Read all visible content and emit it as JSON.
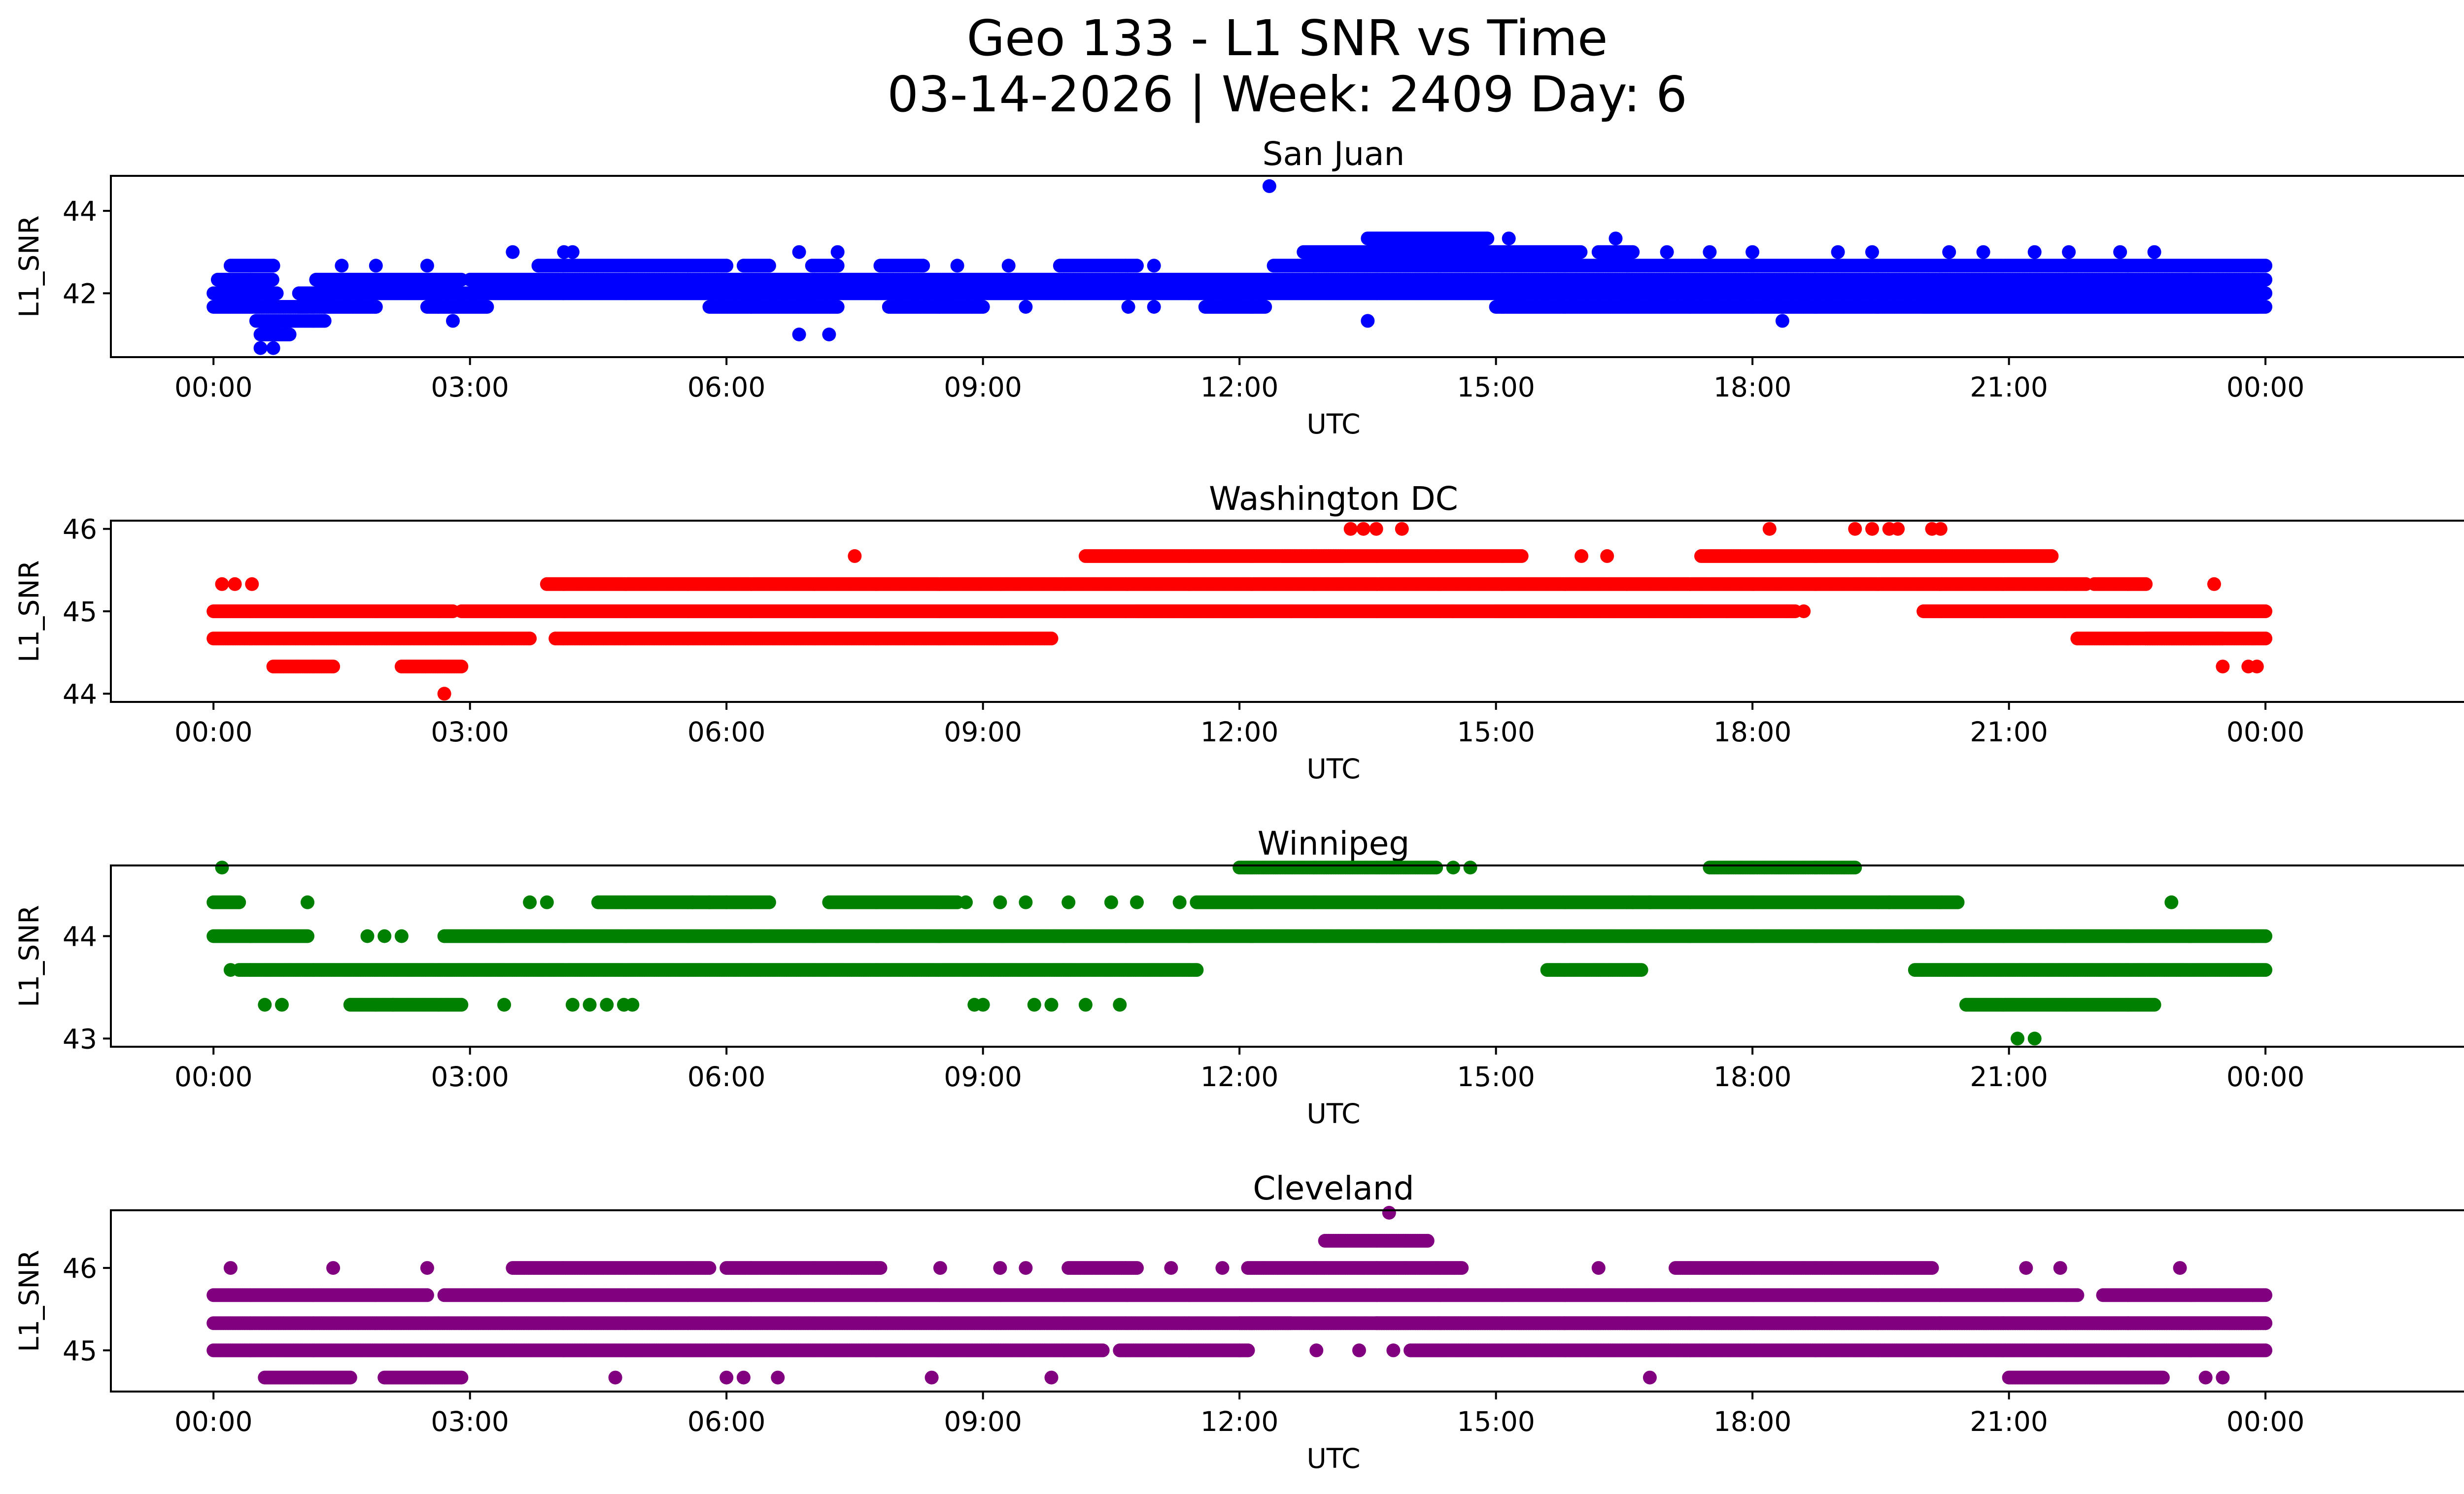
{
  "chart_data": {
    "type": "scatter",
    "suptitle_line1": "Geo 133 - L1 SNR vs Time",
    "suptitle_line2": "03-14-2026 | Week: 2409 Day: 6",
    "x_tick_labels": [
      "00:00",
      "03:00",
      "06:00",
      "09:00",
      "12:00",
      "15:00",
      "18:00",
      "21:00",
      "00:00"
    ],
    "x_tick_hours": [
      0,
      3,
      6,
      9,
      12,
      15,
      18,
      21,
      24
    ],
    "xlim_hours": [
      -1.2,
      27.4
    ],
    "sample_step_hours": 0.02,
    "panels": [
      {
        "title": "San Juan",
        "xlabel": "UTC",
        "ylabel": "L1_SNR",
        "color": "#0000ff",
        "ylim": [
          40.45,
          44.85
        ],
        "y_ticks": [
          42,
          44
        ],
        "y_tick_labels": [
          "42",
          "44"
        ],
        "runs": [
          [
            41.67,
            0.0,
            1.1
          ],
          [
            42.0,
            0.0,
            0.75
          ],
          [
            42.33,
            0.05,
            0.7
          ],
          [
            42.67,
            0.2,
            0.7
          ],
          [
            41.33,
            0.5,
            1.3
          ],
          [
            41.0,
            0.55,
            0.9
          ],
          [
            42.0,
            1.0,
            24.0
          ],
          [
            41.67,
            1.0,
            1.9
          ],
          [
            42.33,
            1.2,
            2.9
          ],
          [
            42.33,
            3.0,
            24.0
          ],
          [
            41.67,
            2.5,
            3.2
          ],
          [
            41.67,
            5.8,
            7.3
          ],
          [
            42.67,
            3.8,
            6.0
          ],
          [
            42.67,
            6.2,
            6.5
          ],
          [
            42.67,
            7.0,
            7.3
          ],
          [
            41.67,
            7.9,
            9.0
          ],
          [
            42.67,
            7.8,
            8.3
          ],
          [
            42.67,
            9.9,
            10.8
          ],
          [
            41.67,
            11.6,
            12.3
          ],
          [
            42.67,
            12.4,
            24.0
          ],
          [
            43.0,
            12.75,
            16.0
          ],
          [
            43.33,
            13.5,
            14.9
          ],
          [
            41.67,
            15.0,
            23.9
          ],
          [
            43.0,
            16.2,
            16.6
          ],
          [
            41.67,
            20.0,
            24.0
          ]
        ],
        "points": [
          [
            40.67,
            0.55
          ],
          [
            40.67,
            0.7
          ],
          [
            41.0,
            6.85
          ],
          [
            41.0,
            7.2
          ],
          [
            41.33,
            2.8
          ],
          [
            41.33,
            13.5
          ],
          [
            41.33,
            18.35
          ],
          [
            43.0,
            3.5
          ],
          [
            43.0,
            4.1
          ],
          [
            43.0,
            4.2
          ],
          [
            43.0,
            6.85
          ],
          [
            43.0,
            7.3
          ],
          [
            43.33,
            15.15
          ],
          [
            43.33,
            16.4
          ],
          [
            43.0,
            17.0
          ],
          [
            43.0,
            17.5
          ],
          [
            43.0,
            18.0
          ],
          [
            43.0,
            19.0
          ],
          [
            43.0,
            19.4
          ],
          [
            43.0,
            20.3
          ],
          [
            43.0,
            20.7
          ],
          [
            43.0,
            21.3
          ],
          [
            43.0,
            21.7
          ],
          [
            43.0,
            22.3
          ],
          [
            43.0,
            22.7
          ],
          [
            44.6,
            12.35
          ],
          [
            41.67,
            1.3
          ],
          [
            41.67,
            9.5
          ],
          [
            41.67,
            10.7
          ],
          [
            41.67,
            11.0
          ],
          [
            42.67,
            2.5
          ],
          [
            42.67,
            1.9
          ],
          [
            42.67,
            1.5
          ],
          [
            42.67,
            11.0
          ],
          [
            42.67,
            9.3
          ],
          [
            42.67,
            8.7
          ]
        ]
      },
      {
        "title": "Washington DC",
        "xlabel": "UTC",
        "ylabel": "L1_SNR",
        "color": "#ff0000",
        "ylim": [
          43.9,
          46.1
        ],
        "y_ticks": [
          44,
          45,
          46
        ],
        "y_tick_labels": [
          "44",
          "45",
          "46"
        ],
        "runs": [
          [
            45.0,
            0.0,
            2.8
          ],
          [
            44.67,
            0.0,
            3.7
          ],
          [
            44.33,
            0.7,
            1.4
          ],
          [
            44.33,
            2.2,
            2.9
          ],
          [
            45.0,
            2.9,
            12.0
          ],
          [
            44.67,
            4.0,
            9.8
          ],
          [
            45.33,
            3.9,
            21.9
          ],
          [
            45.67,
            10.2,
            15.3
          ],
          [
            45.67,
            12.5,
            13.2
          ],
          [
            45.67,
            17.4,
            21.5
          ],
          [
            45.0,
            10.8,
            17.4
          ],
          [
            45.0,
            15.0,
            18.5
          ],
          [
            45.0,
            20.0,
            24.0
          ],
          [
            44.67,
            21.8,
            24.0
          ],
          [
            45.33,
            22.0,
            22.6
          ],
          [
            44.67,
            22.6,
            23.5
          ]
        ],
        "points": [
          [
            45.33,
            0.1
          ],
          [
            45.33,
            0.25
          ],
          [
            45.33,
            0.45
          ],
          [
            44.0,
            2.7
          ],
          [
            45.67,
            7.5
          ],
          [
            46.0,
            13.3
          ],
          [
            46.0,
            13.45
          ],
          [
            46.0,
            13.6
          ],
          [
            46.0,
            13.9
          ],
          [
            46.0,
            18.2
          ],
          [
            46.0,
            19.2
          ],
          [
            46.0,
            19.4
          ],
          [
            46.0,
            19.6
          ],
          [
            46.0,
            19.7
          ],
          [
            46.0,
            20.1
          ],
          [
            46.0,
            20.2
          ],
          [
            45.67,
            16.0
          ],
          [
            45.67,
            16.3
          ],
          [
            44.33,
            23.5
          ],
          [
            44.33,
            23.8
          ],
          [
            44.33,
            23.9
          ],
          [
            45.33,
            23.4
          ],
          [
            45.0,
            12.6
          ],
          [
            45.0,
            12.9
          ],
          [
            45.0,
            14.3
          ],
          [
            45.0,
            14.5
          ],
          [
            45.0,
            17.7
          ],
          [
            45.0,
            18.4
          ],
          [
            45.0,
            18.6
          ],
          [
            45.0,
            20.7
          ],
          [
            45.0,
            20.9
          ]
        ]
      },
      {
        "title": "Winnipeg",
        "xlabel": "UTC",
        "ylabel": "L1_SNR",
        "color": "#008000",
        "ylim": [
          42.92,
          44.69
        ],
        "y_ticks": [
          43,
          44
        ],
        "y_tick_labels": [
          "43",
          "44"
        ],
        "runs": [
          [
            44.0,
            0.0,
            1.1
          ],
          [
            44.33,
            0.0,
            0.3
          ],
          [
            43.67,
            0.3,
            11.5
          ],
          [
            43.33,
            1.6,
            2.1
          ],
          [
            43.33,
            2.1,
            2.9
          ],
          [
            44.0,
            2.7,
            24.0
          ],
          [
            44.33,
            4.5,
            6.5
          ],
          [
            44.33,
            3.0,
            0.0
          ],
          [
            44.33,
            7.2,
            8.7
          ],
          [
            44.33,
            11.5,
            19.6
          ],
          [
            44.33,
            19.6,
            20.4
          ],
          [
            44.67,
            12.0,
            14.3
          ],
          [
            44.67,
            17.5,
            19.2
          ],
          [
            43.67,
            15.6,
            16.7
          ],
          [
            43.67,
            19.9,
            24.0
          ],
          [
            43.33,
            20.5,
            22.7
          ]
        ],
        "points": [
          [
            44.67,
            0.1
          ],
          [
            43.67,
            0.2
          ],
          [
            43.33,
            0.6
          ],
          [
            43.33,
            0.8
          ],
          [
            44.33,
            1.1
          ],
          [
            44.0,
            1.8
          ],
          [
            44.0,
            2.0
          ],
          [
            44.0,
            2.2
          ],
          [
            43.33,
            3.4
          ],
          [
            44.33,
            3.7
          ],
          [
            44.33,
            3.9
          ],
          [
            43.33,
            4.2
          ],
          [
            43.33,
            4.4
          ],
          [
            43.33,
            4.6
          ],
          [
            43.33,
            4.8
          ],
          [
            43.33,
            4.9
          ],
          [
            44.33,
            5.6
          ],
          [
            44.33,
            5.8
          ],
          [
            44.33,
            6.0
          ],
          [
            44.33,
            8.8
          ],
          [
            44.33,
            9.2
          ],
          [
            44.33,
            9.5
          ],
          [
            44.33,
            10.0
          ],
          [
            44.33,
            10.5
          ],
          [
            44.33,
            10.8
          ],
          [
            44.33,
            11.3
          ],
          [
            43.33,
            8.9
          ],
          [
            43.33,
            9.0
          ],
          [
            43.33,
            9.6
          ],
          [
            43.33,
            9.8
          ],
          [
            43.33,
            10.2
          ],
          [
            43.33,
            10.6
          ],
          [
            44.67,
            14.5
          ],
          [
            44.67,
            14.7
          ],
          [
            44.33,
            16.6
          ],
          [
            44.33,
            16.8
          ],
          [
            43.0,
            21.1
          ],
          [
            43.0,
            21.3
          ],
          [
            44.33,
            22.9
          ]
        ]
      },
      {
        "title": "Cleveland",
        "xlabel": "UTC",
        "ylabel": "L1_SNR",
        "color": "#800080",
        "ylim": [
          44.5,
          46.7
        ],
        "y_ticks": [
          45,
          46
        ],
        "y_tick_labels": [
          "45",
          "46"
        ],
        "runs": [
          [
            45.33,
            0.0,
            24.0
          ],
          [
            45.67,
            0.0,
            2.5
          ],
          [
            45.67,
            2.7,
            21.8
          ],
          [
            45.67,
            22.1,
            24.0
          ],
          [
            45.0,
            0.0,
            10.4
          ],
          [
            45.0,
            10.6,
            12.1
          ],
          [
            45.0,
            14.0,
            24.0
          ],
          [
            44.67,
            0.6,
            1.6
          ],
          [
            44.67,
            2.0,
            2.9
          ],
          [
            46.0,
            3.5,
            5.8
          ],
          [
            46.0,
            6.0,
            7.8
          ],
          [
            46.0,
            10.0,
            10.8
          ],
          [
            46.0,
            12.1,
            14.6
          ],
          [
            46.0,
            17.1,
            20.1
          ],
          [
            46.33,
            13.0,
            14.2
          ],
          [
            45.33,
            12.0,
            12.6
          ],
          [
            45.33,
            13.6,
            24.0
          ],
          [
            44.67,
            21.0,
            22.8
          ]
        ],
        "points": [
          [
            46.0,
            0.2
          ],
          [
            46.0,
            1.4
          ],
          [
            46.0,
            2.5
          ],
          [
            46.0,
            8.5
          ],
          [
            46.0,
            9.2
          ],
          [
            46.0,
            9.5
          ],
          [
            46.0,
            11.2
          ],
          [
            46.0,
            11.8
          ],
          [
            46.0,
            16.2
          ],
          [
            46.0,
            21.2
          ],
          [
            46.0,
            21.6
          ],
          [
            46.0,
            23.0
          ],
          [
            46.67,
            13.75
          ],
          [
            44.67,
            4.7
          ],
          [
            44.67,
            6.0
          ],
          [
            44.67,
            6.2
          ],
          [
            44.67,
            6.6
          ],
          [
            44.67,
            8.4
          ],
          [
            44.67,
            9.8
          ],
          [
            44.67,
            16.8
          ],
          [
            44.67,
            23.3
          ],
          [
            44.67,
            23.5
          ],
          [
            45.0,
            12.0
          ],
          [
            45.0,
            13.8
          ],
          [
            45.0,
            12.9
          ],
          [
            45.0,
            13.4
          ]
        ]
      }
    ]
  }
}
